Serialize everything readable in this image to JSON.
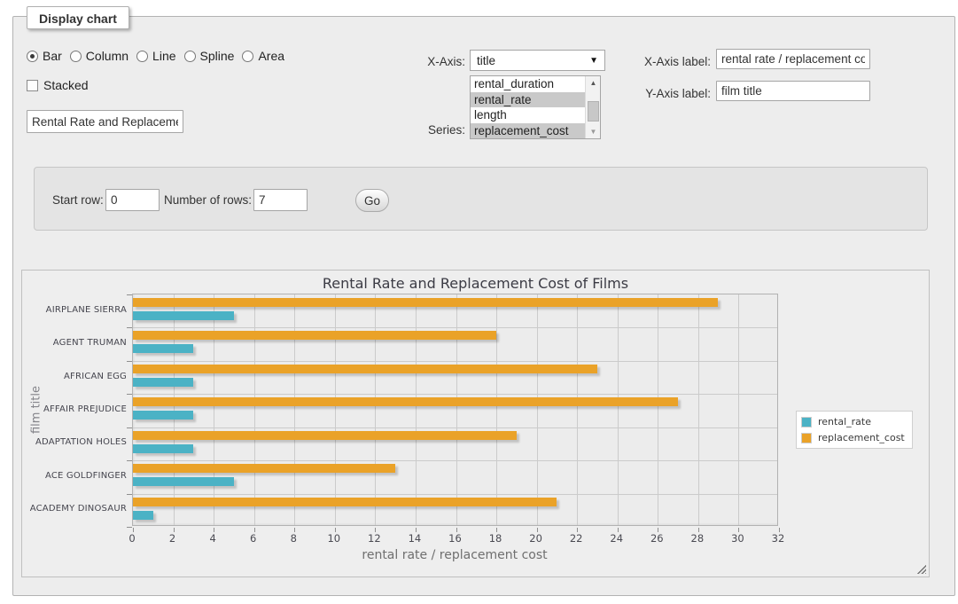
{
  "panel": {
    "legend": "Display chart"
  },
  "chart_type": {
    "options": [
      {
        "label": "Bar",
        "selected": true
      },
      {
        "label": "Column",
        "selected": false
      },
      {
        "label": "Line",
        "selected": false
      },
      {
        "label": "Spline",
        "selected": false
      },
      {
        "label": "Area",
        "selected": false
      }
    ]
  },
  "stacked": {
    "label": "Stacked",
    "checked": false
  },
  "chart_title_input": {
    "value": "Rental Rate and Replacement Cost of Films"
  },
  "x_axis_select": {
    "label": "X-Axis:",
    "value": "title"
  },
  "series_select": {
    "label": "Series:",
    "options": [
      {
        "label": "rental_duration",
        "selected": false
      },
      {
        "label": "rental_rate",
        "selected": true
      },
      {
        "label": "length",
        "selected": false
      },
      {
        "label": "replacement_cost",
        "selected": true
      }
    ]
  },
  "x_axis_label_input": {
    "label": "X-Axis label:",
    "value": "rental rate / replacement cost"
  },
  "y_axis_label_input": {
    "label": "Y-Axis label:",
    "value": "film title"
  },
  "row_controls": {
    "start_row": {
      "label": "Start row:",
      "value": "0"
    },
    "number_of_rows": {
      "label": "Number of rows:",
      "value": "7"
    },
    "go_button": "Go"
  },
  "chart_data": {
    "type": "bar",
    "orientation": "horizontal",
    "title": "Rental Rate and Replacement Cost of Films",
    "categories": [
      "AIRPLANE SIERRA",
      "AGENT TRUMAN",
      "AFRICAN EGG",
      "AFFAIR PREJUDICE",
      "ADAPTATION HOLES",
      "ACE GOLDFINGER",
      "ACADEMY DINOSAUR"
    ],
    "series": [
      {
        "name": "rental_rate",
        "color": "#4bb2c5",
        "values": [
          4.99,
          2.99,
          2.99,
          2.99,
          2.99,
          4.99,
          0.99
        ]
      },
      {
        "name": "replacement_cost",
        "color": "#EAA228",
        "values": [
          28.99,
          17.99,
          22.99,
          26.99,
          18.99,
          12.99,
          20.99
        ]
      }
    ],
    "bar_draw_order": [
      "replacement_cost",
      "rental_rate"
    ],
    "xlabel": "rental rate / replacement cost",
    "ylabel": "film title",
    "xlim": [
      0,
      32
    ],
    "xtick_step": 2,
    "grid": true,
    "legend_position": "right"
  }
}
